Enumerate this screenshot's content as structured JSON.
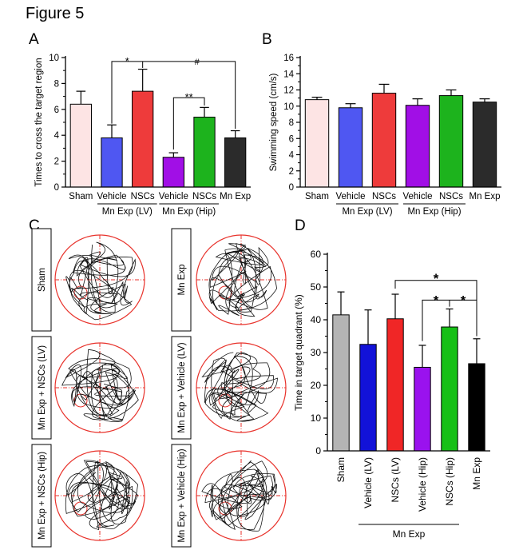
{
  "figure_title": "Figure 5",
  "panels": {
    "A": "A",
    "B": "B",
    "C": "C",
    "D": "D"
  },
  "colors": {
    "sham_a": "#fde4e4",
    "vehicle_lv": "#4f57f2",
    "nscs_lv": "#ee3b3b",
    "vehicle_hip": "#a10fe6",
    "nscs_hip": "#1db31d",
    "mn_exp": "#2b2b2b",
    "sham_d": "#b4b4b4",
    "vehicle_lv_d": "#1212d8",
    "nscs_lv_d": "#f02626",
    "vehicle_hip_d": "#9a12ee",
    "nscs_hip_d": "#16c016",
    "mn_exp_d": "#000000",
    "track": "#111111",
    "circle": "#e8322b"
  },
  "chart_data": [
    {
      "id": "A",
      "type": "bar",
      "ylabel": "Times to cross the target region",
      "ylim": [
        0,
        10
      ],
      "yticks": [
        0,
        2,
        4,
        6,
        8,
        10
      ],
      "categories": [
        "Sham",
        "Vehicle",
        "NSCs",
        "Vehicle",
        "NSCs",
        "Mn Exp"
      ],
      "values": [
        6.4,
        3.8,
        7.4,
        2.3,
        5.4,
        3.8
      ],
      "errors": [
        1.0,
        1.0,
        1.7,
        0.35,
        0.75,
        0.55
      ],
      "group_labels": [
        "Mn Exp (LV)",
        "Mn Exp (Hip)"
      ],
      "annotations": [
        "*",
        "#",
        "**"
      ]
    },
    {
      "id": "B",
      "type": "bar",
      "ylabel": "Swimming speed (cm/s)",
      "ylim": [
        0,
        16
      ],
      "yticks": [
        0,
        2,
        4,
        6,
        8,
        10,
        12,
        14,
        16
      ],
      "categories": [
        "Sham",
        "Vehicle",
        "NSCs",
        "Vehicle",
        "NSCs",
        "Mn Exp"
      ],
      "values": [
        10.8,
        9.8,
        11.6,
        10.1,
        11.3,
        10.5
      ],
      "errors": [
        0.3,
        0.5,
        1.1,
        0.8,
        0.7,
        0.4
      ],
      "group_labels": [
        "Mn Exp (LV)",
        "Mn Exp (Hip)"
      ]
    },
    {
      "id": "D",
      "type": "bar",
      "ylabel": "Time in target quadrant (%)",
      "ylim": [
        0,
        60
      ],
      "yticks": [
        0,
        10,
        20,
        30,
        40,
        50,
        60
      ],
      "categories": [
        "Sham",
        "Vehicle (LV)",
        "NSCs (LV)",
        "Vehicle (Hip)",
        "NSCs (Hip)",
        "Mn Exp"
      ],
      "values": [
        41.5,
        32.5,
        40.3,
        25.5,
        37.8,
        26.6
      ],
      "errors": [
        7.0,
        10.5,
        7.5,
        6.7,
        5.5,
        7.6
      ],
      "group_label": "Mn Exp",
      "annotations": [
        "*",
        "*",
        "*"
      ]
    }
  ],
  "tracks": [
    {
      "label": "Sham"
    },
    {
      "label": "Mn Exp"
    },
    {
      "label": "Mn Exp + NSCs (LV)"
    },
    {
      "label": "Mn Exp + Vehicle (LV)"
    },
    {
      "label": "Mn Exp + NSCs (Hip)"
    },
    {
      "label": "Mn Exp + Vehicle (Hip)"
    }
  ]
}
